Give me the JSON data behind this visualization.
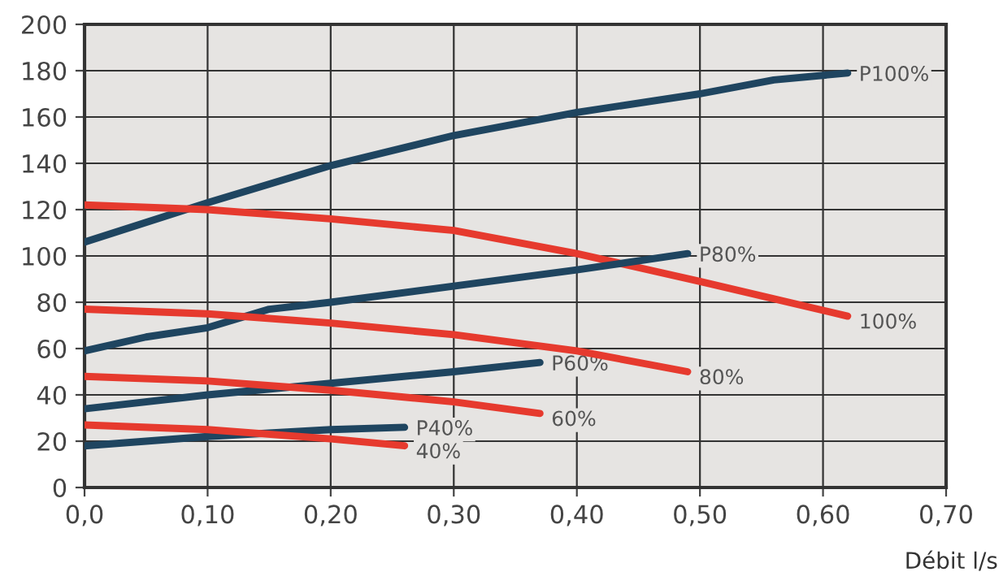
{
  "chart_data": {
    "type": "line",
    "xlabel": "Débit l/s",
    "xlim": [
      0,
      0.7
    ],
    "ylim": [
      0,
      200
    ],
    "xticks": [
      {
        "value": 0,
        "label": "0,0"
      },
      {
        "value": 0.1,
        "label": "0,10"
      },
      {
        "value": 0.2,
        "label": "0,20"
      },
      {
        "value": 0.3,
        "label": "0,30"
      },
      {
        "value": 0.4,
        "label": "0,40"
      },
      {
        "value": 0.5,
        "label": "0,50"
      },
      {
        "value": 0.6,
        "label": "0,60"
      },
      {
        "value": 0.7,
        "label": "0,70"
      }
    ],
    "yticks": [
      0,
      20,
      40,
      60,
      80,
      100,
      120,
      140,
      160,
      180,
      200
    ],
    "grid": true,
    "legend": false,
    "marker": "none",
    "line_style": "solid",
    "series": [
      {
        "name": "P100%",
        "color": "#1f4560",
        "x": [
          0,
          0.1,
          0.2,
          0.3,
          0.4,
          0.5,
          0.56,
          0.62
        ],
        "values": [
          106,
          123,
          139,
          152,
          162,
          170,
          176,
          179
        ]
      },
      {
        "name": "100%",
        "color": "#e63a2e",
        "x": [
          0,
          0.1,
          0.2,
          0.3,
          0.4,
          0.5,
          0.62
        ],
        "values": [
          122,
          120,
          116,
          111,
          101,
          89,
          74
        ]
      },
      {
        "name": "P80%",
        "color": "#1f4560",
        "x": [
          0,
          0.05,
          0.1,
          0.15,
          0.2,
          0.3,
          0.4,
          0.49
        ],
        "values": [
          59,
          65,
          69,
          77,
          80,
          87,
          94,
          101
        ]
      },
      {
        "name": "80%",
        "color": "#e63a2e",
        "x": [
          0,
          0.1,
          0.2,
          0.3,
          0.4,
          0.49
        ],
        "values": [
          77,
          75,
          71,
          66,
          59,
          50
        ]
      },
      {
        "name": "P60%",
        "color": "#1f4560",
        "x": [
          0,
          0.1,
          0.2,
          0.3,
          0.37
        ],
        "values": [
          34,
          40,
          45,
          50,
          54
        ]
      },
      {
        "name": "60%",
        "color": "#e63a2e",
        "x": [
          0,
          0.1,
          0.2,
          0.3,
          0.37
        ],
        "values": [
          48,
          46,
          42,
          37,
          32
        ]
      },
      {
        "name": "P40%",
        "color": "#1f4560",
        "x": [
          0,
          0.1,
          0.2,
          0.26
        ],
        "values": [
          18,
          22,
          25,
          26
        ]
      },
      {
        "name": "40%",
        "color": "#e63a2e",
        "x": [
          0,
          0.1,
          0.2,
          0.26
        ],
        "values": [
          27,
          25,
          21,
          18
        ]
      }
    ]
  }
}
